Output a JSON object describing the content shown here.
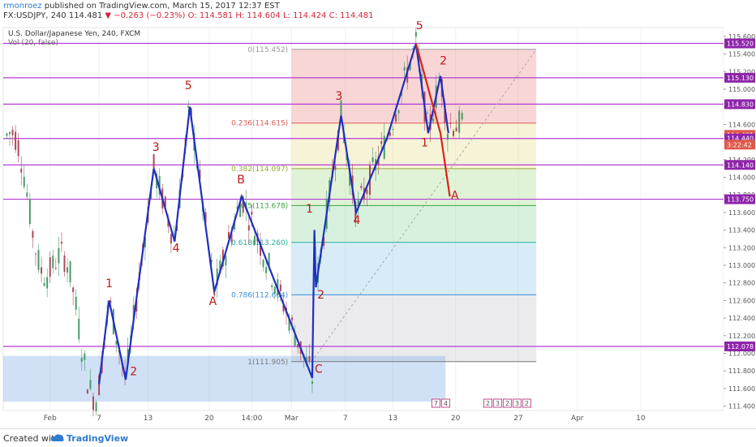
{
  "header": {
    "author": "rmonroez",
    "published": "published on TradingView.com, March 15, 2017 12:37 EST",
    "symbol_line": "FX:USDJPY, 240  114.481",
    "change": "▼ −0.263 (−0.23%)",
    "ohlc": "O: 114.581 H: 114.604 L: 114.424 C: 114.481"
  },
  "footer": {
    "created_with": "Created with",
    "brand": "TradingView"
  },
  "colors": {
    "wave_blue": "#1f2fbf",
    "wave_red": "#d6261a",
    "hline": "#b43cd4",
    "label_red": "#c01818",
    "price_box": "#8e24aa"
  },
  "chart_data": {
    "type": "line",
    "title": "U.S. Dollar/Japanese Yen, 240, FXCM",
    "subtitle": "Vol (20, false)",
    "ylim": [
      111.35,
      115.7
    ],
    "y_ticks": [
      "115.600",
      "115.400",
      "115.200",
      "115.000",
      "114.800",
      "114.600",
      "114.400",
      "114.200",
      "114.000",
      "113.800",
      "113.600",
      "113.400",
      "113.200",
      "113.000",
      "112.800",
      "112.600",
      "112.400",
      "112.200",
      "112.000",
      "111.800",
      "111.600",
      "111.400"
    ],
    "x_ticks": [
      "Feb",
      "7",
      "13",
      "20",
      "14:00",
      "Mar",
      "7",
      "13",
      "20",
      "27",
      "Apr",
      "10"
    ],
    "x_tick_pos": [
      0.065,
      0.133,
      0.201,
      0.286,
      0.345,
      0.4,
      0.475,
      0.541,
      0.628,
      0.715,
      0.797,
      0.885
    ],
    "price_labels": [
      "115.520",
      "115.130",
      "114.830",
      "114.481",
      "114.440",
      "114.140",
      "113.750",
      "112.078"
    ],
    "price_label_values": [
      115.52,
      115.13,
      114.83,
      114.481,
      114.44,
      114.14,
      113.75,
      112.078
    ],
    "timer_label": "3:22:42",
    "horizontal_levels": [
      115.52,
      115.13,
      114.83,
      114.44,
      114.14,
      113.75,
      112.078
    ],
    "fib_levels": [
      {
        "label": "0(115.452)",
        "value": 115.452,
        "color": "#999999"
      },
      {
        "label": "0.236(114.615)",
        "value": 114.615,
        "color": "#e05a5a"
      },
      {
        "label": "0.382(114.097)",
        "value": 114.097,
        "color": "#9aa833"
      },
      {
        "label": "0.5(113.678)",
        "value": 113.678,
        "color": "#3da33d"
      },
      {
        "label": "0.618(113.260)",
        "value": 113.26,
        "color": "#27b09a"
      },
      {
        "label": "0.786(112.664)",
        "value": 112.664,
        "color": "#3b8ed6"
      },
      {
        "label": "1(111.905)",
        "value": 111.905,
        "color": "#777777"
      }
    ],
    "fib_x_range": [
      0.4,
      0.74
    ],
    "waves_blue": [
      {
        "x": 0.133,
        "y": 111.65
      },
      {
        "x": 0.147,
        "y": 112.6
      },
      {
        "x": 0.17,
        "y": 111.7
      },
      {
        "x": 0.209,
        "y": 114.1
      },
      {
        "x": 0.238,
        "y": 113.27
      },
      {
        "x": 0.259,
        "y": 114.8
      },
      {
        "x": 0.293,
        "y": 112.7
      },
      {
        "x": 0.331,
        "y": 113.78
      },
      {
        "x": 0.429,
        "y": 111.72
      },
      {
        "x": 0.432,
        "y": 113.4
      },
      {
        "x": 0.434,
        "y": 112.75
      },
      {
        "x": 0.469,
        "y": 114.7
      },
      {
        "x": 0.49,
        "y": 113.6
      },
      {
        "x": 0.533,
        "y": 114.45
      },
      {
        "x": 0.573,
        "y": 115.52
      },
      {
        "x": 0.59,
        "y": 114.5
      },
      {
        "x": 0.607,
        "y": 115.15
      },
      {
        "x": 0.618,
        "y": 114.5
      }
    ],
    "waves_red": [
      {
        "x": 0.573,
        "y": 115.52
      },
      {
        "x": 0.607,
        "y": 114.5
      },
      {
        "x": 0.62,
        "y": 113.78
      }
    ],
    "wave_labels": [
      {
        "text": "1",
        "x": 0.147,
        "y": 112.75
      },
      {
        "text": "2",
        "x": 0.181,
        "y": 111.75
      },
      {
        "text": "3",
        "x": 0.212,
        "y": 114.3
      },
      {
        "text": "4",
        "x": 0.24,
        "y": 113.15
      },
      {
        "text": "5",
        "x": 0.257,
        "y": 115.0
      },
      {
        "text": "A",
        "x": 0.291,
        "y": 112.55
      },
      {
        "text": "B",
        "x": 0.33,
        "y": 113.93
      },
      {
        "text": "C",
        "x": 0.438,
        "y": 111.78
      },
      {
        "text": "1",
        "x": 0.425,
        "y": 113.6
      },
      {
        "text": "2",
        "x": 0.441,
        "y": 112.62
      },
      {
        "text": "3",
        "x": 0.466,
        "y": 114.88
      },
      {
        "text": "4",
        "x": 0.491,
        "y": 113.47
      },
      {
        "text": "5",
        "x": 0.578,
        "y": 115.68
      },
      {
        "text": "1",
        "x": 0.585,
        "y": 114.35
      },
      {
        "text": "2",
        "x": 0.611,
        "y": 115.28
      },
      {
        "text": "A",
        "x": 0.627,
        "y": 113.75
      }
    ],
    "legend_badges": [
      "7",
      "4",
      "2",
      "3",
      "2",
      "3",
      "2"
    ]
  }
}
